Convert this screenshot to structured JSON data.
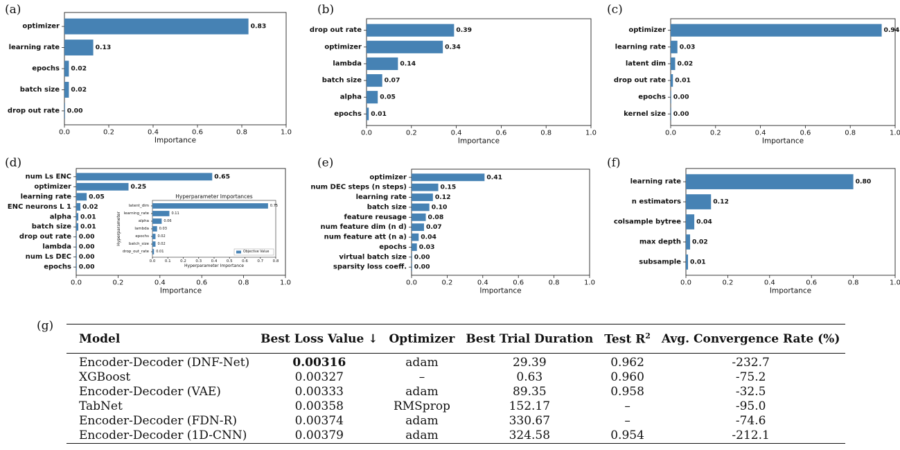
{
  "chart_data": [
    {
      "panel": "(a)",
      "type": "bar",
      "orientation": "horizontal",
      "categories": [
        "optimizer",
        "learning rate",
        "epochs",
        "batch size",
        "drop out rate"
      ],
      "values": [
        0.83,
        0.13,
        0.02,
        0.02,
        0.0
      ],
      "value_labels": [
        "0.83",
        "0.13",
        "0.02",
        "0.02",
        "0.00"
      ],
      "xlabel": "Importance",
      "xlim": [
        0,
        1.0
      ],
      "xticks": [
        "0.0",
        "0.2",
        "0.4",
        "0.6",
        "0.8",
        "1.0"
      ],
      "color": "#4682b4",
      "grid": false
    },
    {
      "panel": "(b)",
      "type": "bar",
      "orientation": "horizontal",
      "categories": [
        "drop out rate",
        "optimizer",
        "lambda",
        "batch size",
        "alpha",
        "epochs"
      ],
      "values": [
        0.39,
        0.34,
        0.14,
        0.07,
        0.05,
        0.01
      ],
      "value_labels": [
        "0.39",
        "0.34",
        "0.14",
        "0.07",
        "0.05",
        "0.01"
      ],
      "xlabel": "Importance",
      "xlim": [
        0,
        1.0
      ],
      "xticks": [
        "0.0",
        "0.2",
        "0.4",
        "0.6",
        "0.8",
        "1.0"
      ],
      "color": "#4682b4",
      "grid": false
    },
    {
      "panel": "(c)",
      "type": "bar",
      "orientation": "horizontal",
      "categories": [
        "optimizer",
        "learning rate",
        "latent dim",
        "drop out rate",
        "epochs",
        "kernel size"
      ],
      "values": [
        0.94,
        0.03,
        0.02,
        0.01,
        0.0,
        0.0
      ],
      "value_labels": [
        "0.94",
        "0.03",
        "0.02",
        "0.01",
        "0.00",
        "0.00"
      ],
      "xlabel": "Importance",
      "xlim": [
        0,
        1.0
      ],
      "xticks": [
        "0.0",
        "0.2",
        "0.4",
        "0.6",
        "0.8",
        "1.0"
      ],
      "color": "#4682b4",
      "grid": false
    },
    {
      "panel": "(d)",
      "type": "bar",
      "orientation": "horizontal",
      "categories": [
        "num Ls ENC",
        "optimizer",
        "learning rate",
        "ENC neurons L 1",
        "alpha",
        "batch size",
        "drop out rate",
        "lambda",
        "num Ls DEC",
        "epochs"
      ],
      "values": [
        0.65,
        0.25,
        0.05,
        0.02,
        0.01,
        0.01,
        0.0,
        0.0,
        0.0,
        0.0
      ],
      "value_labels": [
        "0.65",
        "0.25",
        "0.05",
        "0.02",
        "0.01",
        "0.01",
        "0.00",
        "0.00",
        "0.00",
        "0.00"
      ],
      "xlabel": "Importance",
      "xlim": [
        0,
        1.0
      ],
      "xticks": [
        "0.0",
        "0.2",
        "0.4",
        "0.6",
        "0.8",
        "1.0"
      ],
      "color": "#4682b4",
      "grid": false
    },
    {
      "panel": "(d) inset",
      "type": "bar",
      "orientation": "horizontal",
      "title": "Hyperparameter Importances",
      "categories": [
        "latent_dim",
        "learning_rate",
        "alpha",
        "lambda",
        "epochs",
        "batch_size",
        "drop_out_rate"
      ],
      "values": [
        0.75,
        0.11,
        0.06,
        0.03,
        0.02,
        0.02,
        0.01
      ],
      "value_labels": [
        "0.75",
        "0.11",
        "0.06",
        "0.03",
        "0.02",
        "0.02",
        "0.01"
      ],
      "xlabel": "Hyperparameter Importance",
      "ylabel": "Hyperparameter",
      "xlim": [
        0,
        0.8
      ],
      "xticks": [
        "0.0",
        "0.1",
        "0.2",
        "0.3",
        "0.4",
        "0.5",
        "0.6",
        "0.7",
        "0.8"
      ],
      "legend": "Objective Value",
      "legend_position": "bottom-right",
      "color": "#4682b4",
      "grid": false
    },
    {
      "panel": "(e)",
      "type": "bar",
      "orientation": "horizontal",
      "categories": [
        "optimizer",
        "num DEC steps (n steps)",
        "learning rate",
        "batch size",
        "feature reusage",
        "num feature dim (n d)",
        "num feature att (n a)",
        "epochs",
        "virtual batch size",
        "sparsity loss coeff."
      ],
      "values": [
        0.41,
        0.15,
        0.12,
        0.1,
        0.08,
        0.07,
        0.04,
        0.03,
        0.0,
        0.0
      ],
      "value_labels": [
        "0.41",
        "0.15",
        "0.12",
        "0.10",
        "0.08",
        "0.07",
        "0.04",
        "0.03",
        "0.00",
        "0.00"
      ],
      "xlabel": "Importance",
      "xlim": [
        0,
        1.0
      ],
      "xticks": [
        "0.0",
        "0.2",
        "0.4",
        "0.6",
        "0.8",
        "1.0"
      ],
      "color": "#4682b4",
      "grid": false
    },
    {
      "panel": "(f)",
      "type": "bar",
      "orientation": "horizontal",
      "categories": [
        "learning rate",
        "n estimators",
        "colsample bytree",
        "max depth",
        "subsample"
      ],
      "values": [
        0.8,
        0.12,
        0.04,
        0.02,
        0.01
      ],
      "value_labels": [
        "0.80",
        "0.12",
        "0.04",
        "0.02",
        "0.01"
      ],
      "xlabel": "Importance",
      "xlim": [
        0,
        1.0
      ],
      "xticks": [
        "0.0",
        "0.2",
        "0.4",
        "0.6",
        "0.8",
        "1.0"
      ],
      "color": "#4682b4",
      "grid": false
    }
  ],
  "table": {
    "panel": "(g)",
    "headers": [
      "Model",
      "Best Loss Value ↓",
      "Optimizer",
      "Best Trial Duration",
      "Test R",
      "Avg. Convergence Rate (%)"
    ],
    "r2_superscript": "2",
    "rows": [
      [
        "Encoder-Decoder (DNF-Net)",
        "0.00316",
        "adam",
        "29.39",
        "0.962",
        "-232.7"
      ],
      [
        "XGBoost",
        "0.00327",
        "–",
        "0.63",
        "0.960",
        "-75.2"
      ],
      [
        "Encoder-Decoder (VAE)",
        "0.00333",
        "adam",
        "89.35",
        "0.958",
        "-32.5"
      ],
      [
        "TabNet",
        "0.00358",
        "RMSprop",
        "152.17",
        "–",
        "-95.0"
      ],
      [
        "Encoder-Decoder (FDN-R)",
        "0.00374",
        "adam",
        "330.67",
        "–",
        "-74.6"
      ],
      [
        "Encoder-Decoder (1D-CNN)",
        "0.00379",
        "adam",
        "324.58",
        "0.954",
        "-212.1"
      ]
    ],
    "bold_cell": {
      "row": 0,
      "col": 1
    }
  }
}
